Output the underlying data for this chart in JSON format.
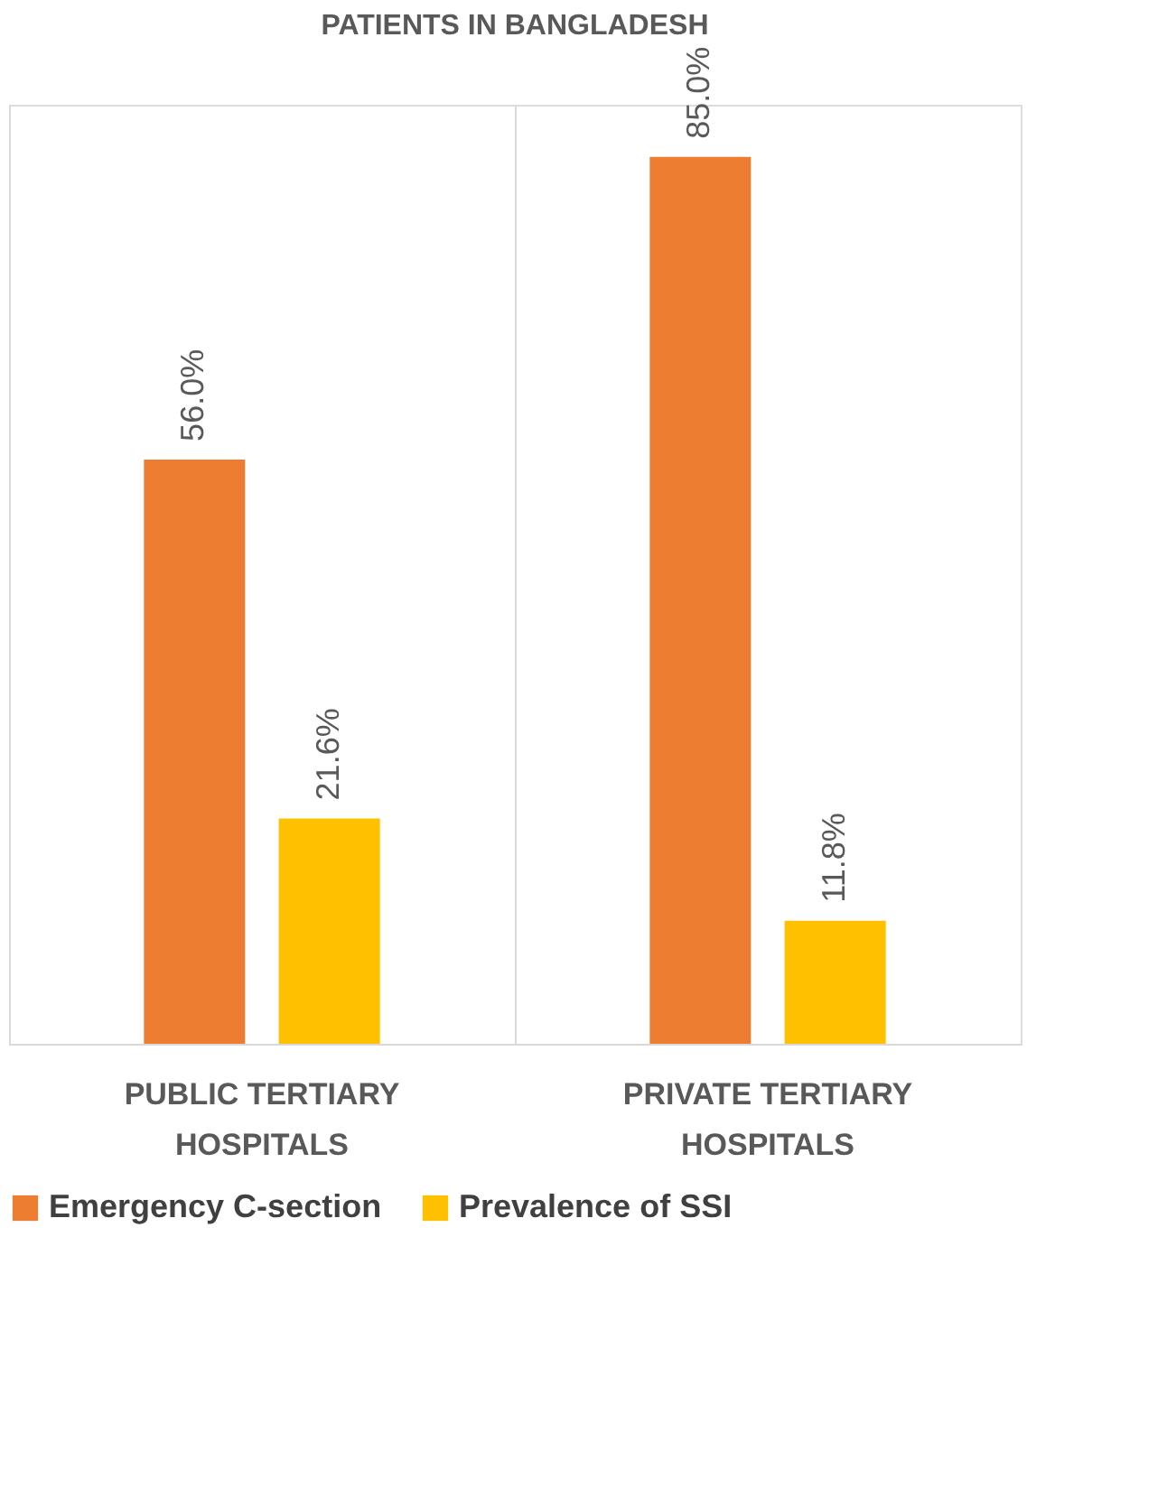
{
  "chart_data": {
    "type": "bar",
    "title": "PATIENTS IN BANGLADESH",
    "categories": [
      "PUBLIC TERTIARY HOSPITALS",
      "PRIVATE TERTIARY HOSPITALS"
    ],
    "series": [
      {
        "name": "Emergency C-section",
        "color": "#ed7d31",
        "values": [
          56.0,
          85.0
        ],
        "value_labels": [
          "56.0%",
          "85.0%"
        ]
      },
      {
        "name": "Prevalence of SSI",
        "color": "#ffc000",
        "values": [
          21.6,
          11.8
        ],
        "value_labels": [
          "21.6%",
          "11.8%"
        ]
      }
    ],
    "grid": "x",
    "legend": "bottom",
    "tick_labels": "x"
  }
}
